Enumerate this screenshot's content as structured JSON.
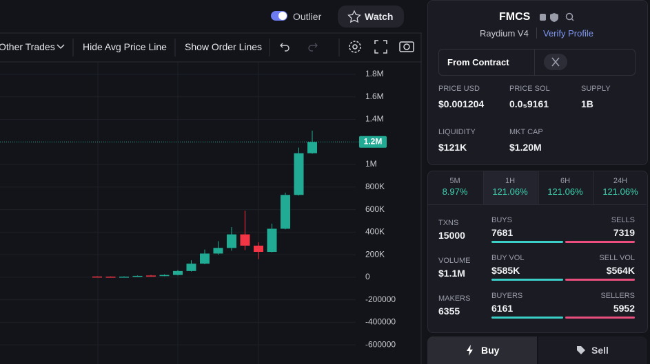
{
  "header": {
    "toggle_label": "Outlier",
    "watch": "Watch"
  },
  "toolbar": {
    "other_trades": "Other Trades",
    "hide_avg": "Hide Avg Price Line",
    "show_order": "Show Order Lines"
  },
  "chart_data": {
    "type": "candlestick",
    "open": [
      6000,
      5000,
      2000,
      5000,
      15000,
      10000,
      20000,
      55000,
      120000,
      210000,
      260000,
      380000,
      280000,
      225000,
      430000,
      730000,
      1100000
    ],
    "high": [
      8000,
      7000,
      8000,
      15000,
      20000,
      25000,
      65000,
      150000,
      245000,
      320000,
      445000,
      590000,
      310000,
      475000,
      750000,
      1150000,
      1300000
    ],
    "low": [
      2000,
      2000,
      0,
      3000,
      8000,
      8000,
      15000,
      50000,
      115000,
      200000,
      235000,
      240000,
      160000,
      220000,
      425000,
      725000,
      1095000
    ],
    "close": [
      3000,
      3000,
      5000,
      12000,
      10000,
      20000,
      55000,
      120000,
      210000,
      260000,
      380000,
      280000,
      225000,
      430000,
      730000,
      1100000,
      1200000
    ],
    "up_color": "#22ab94",
    "down_color": "#f23645",
    "ylim": [
      -770000,
      1910000
    ],
    "yticks": [
      {
        "value": 1800000,
        "label": "1.8M"
      },
      {
        "value": 1600000,
        "label": "1.6M"
      },
      {
        "value": 1400000,
        "label": "1.4M"
      },
      {
        "value": 1000000,
        "label": "1M"
      },
      {
        "value": 800000,
        "label": "800K"
      },
      {
        "value": 600000,
        "label": "600K"
      },
      {
        "value": 400000,
        "label": "400K"
      },
      {
        "value": 200000,
        "label": "200K"
      },
      0,
      -200000,
      -400000,
      -600000
    ],
    "grid": true,
    "last_price": {
      "value": 1200000,
      "label": "1.2M"
    }
  },
  "token": {
    "symbol": "FMCS",
    "dex": "Raydium V4",
    "verify": "Verify Profile",
    "from_contract": "From Contract",
    "stats": [
      {
        "label": "PRICE USD",
        "value": "$0.001204"
      },
      {
        "label": "PRICE SOL",
        "value": "0.0₅9161"
      },
      {
        "label": "SUPPLY",
        "value": "1B"
      },
      {
        "label": "LIQUIDITY",
        "value": "$121K"
      },
      {
        "label": "MKT CAP",
        "value": "$1.20M"
      }
    ]
  },
  "timeframes": [
    {
      "label": "5M",
      "change": "8.97%"
    },
    {
      "label": "1H",
      "change": "121.06%"
    },
    {
      "label": "6H",
      "change": "121.06%"
    },
    {
      "label": "24H",
      "change": "121.06%"
    }
  ],
  "activity": [
    {
      "label": "TXNS",
      "value": "15000",
      "left_label": "BUYS",
      "left_value": "7681",
      "right_label": "SELLS",
      "right_value": "7319"
    },
    {
      "label": "VOLUME",
      "value": "$1.1M",
      "left_label": "BUY VOL",
      "left_value": "$585K",
      "right_label": "SELL VOL",
      "right_value": "$564K"
    },
    {
      "label": "MAKERS",
      "value": "6355",
      "left_label": "BUYERS",
      "left_value": "6161",
      "right_label": "SELLERS",
      "right_value": "5952"
    }
  ],
  "actions": {
    "buy": "Buy",
    "sell": "Sell"
  }
}
